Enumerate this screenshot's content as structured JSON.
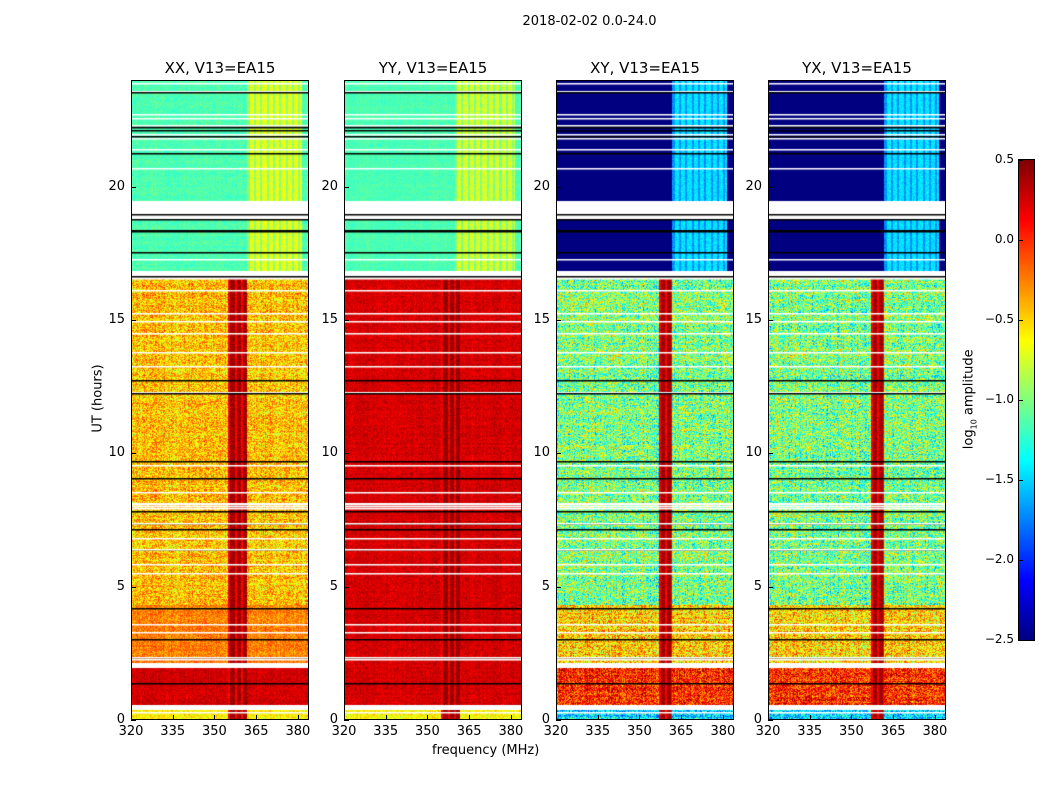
{
  "figure_title": "2018-02-02 0.0-24.0",
  "chart_data": {
    "type": "heatmap",
    "title": "2018-02-02 0.0-24.0",
    "xlabel": "frequency (MHz)",
    "ylabel": "UT (hours)",
    "xlim": [
      320,
      384
    ],
    "ylim": [
      0,
      24
    ],
    "xticks": [
      "320",
      "335",
      "350",
      "365",
      "380"
    ],
    "yticks": [
      "0",
      "5",
      "10",
      "15",
      "20"
    ],
    "colorbar": {
      "label_main": "log",
      "label_sub": "10",
      "label_rest": " amplitude",
      "colormap": "jet",
      "range": [
        -2.5,
        0.5
      ],
      "ticks": [
        "0.5",
        "0.0",
        "−0.5",
        "−1.0",
        "−1.5",
        "−2.0",
        "−2.5"
      ]
    },
    "flagged_hours": [
      [
        18.8,
        19.5
      ],
      [
        16.56,
        16.86
      ],
      [
        1.9,
        2.1
      ],
      [
        0.34,
        0.53
      ]
    ],
    "panels": [
      {
        "title": "XX, V13=EA15",
        "segments": [
          {
            "t": [
              19.5,
              24
            ],
            "level": -1.15,
            "noise": 0.1
          },
          {
            "t": [
              16.86,
              18.8
            ],
            "level": -1.15,
            "noise": 0.1
          },
          {
            "t": [
              4.3,
              16.56
            ],
            "level": -0.45,
            "noise": 0.35
          },
          {
            "t": [
              2.1,
              4.3
            ],
            "level": -0.25,
            "noise": 0.2
          },
          {
            "t": [
              0.53,
              1.9
            ],
            "level": 0.25,
            "noise": 0.12
          },
          {
            "t": [
              0,
              0.34
            ],
            "level": -0.6,
            "noise": 0.2
          }
        ],
        "rfi_bands": [
          {
            "f": [
              355,
              362
            ],
            "t": [
              0,
              16.56
            ],
            "level": 0.4
          },
          {
            "f": [
              362,
              382
            ],
            "t": [
              16.86,
              24
            ],
            "level": -0.7
          }
        ]
      },
      {
        "title": "YY, V13=EA15",
        "segments": [
          {
            "t": [
              19.5,
              24
            ],
            "level": -1.15,
            "noise": 0.08
          },
          {
            "t": [
              16.86,
              18.8
            ],
            "level": -1.15,
            "noise": 0.08
          },
          {
            "t": [
              0.53,
              16.56
            ],
            "level": 0.25,
            "noise": 0.12
          },
          {
            "t": [
              0,
              0.34
            ],
            "level": -0.6,
            "noise": 0.2
          }
        ],
        "rfi_bands": [
          {
            "f": [
              355,
              362
            ],
            "t": [
              0,
              16.56
            ],
            "level": 0.42
          },
          {
            "f": [
              360,
              382
            ],
            "t": [
              16.86,
              24
            ],
            "level": -0.75
          }
        ]
      },
      {
        "title": "XY, V13=EA15",
        "segments": [
          {
            "t": [
              19.5,
              24
            ],
            "level": -2.5,
            "noise": 0
          },
          {
            "t": [
              16.86,
              18.8
            ],
            "level": -2.5,
            "noise": 0
          },
          {
            "t": [
              4.3,
              16.56
            ],
            "level": -1.0,
            "noise": 0.55
          },
          {
            "t": [
              2.1,
              4.3
            ],
            "level": -0.5,
            "noise": 0.45
          },
          {
            "t": [
              0.53,
              1.9
            ],
            "level": 0.0,
            "noise": 0.4
          },
          {
            "t": [
              0,
              0.34
            ],
            "level": -1.5,
            "noise": 0.4
          }
        ],
        "rfi_bands": [
          {
            "f": [
              357,
              362
            ],
            "t": [
              0,
              16.56
            ],
            "level": 0.4
          },
          {
            "f": [
              362,
              382
            ],
            "t": [
              16.86,
              24
            ],
            "level": -1.45
          }
        ]
      },
      {
        "title": "YX, V13=EA15",
        "segments": [
          {
            "t": [
              19.5,
              24
            ],
            "level": -2.5,
            "noise": 0
          },
          {
            "t": [
              16.86,
              18.8
            ],
            "level": -2.5,
            "noise": 0
          },
          {
            "t": [
              4.3,
              16.56
            ],
            "level": -1.0,
            "noise": 0.55
          },
          {
            "t": [
              2.1,
              4.3
            ],
            "level": -0.5,
            "noise": 0.45
          },
          {
            "t": [
              0.53,
              1.9
            ],
            "level": 0.0,
            "noise": 0.4
          },
          {
            "t": [
              0,
              0.34
            ],
            "level": -1.5,
            "noise": 0.4
          }
        ],
        "rfi_bands": [
          {
            "f": [
              357,
              362
            ],
            "t": [
              0,
              16.56
            ],
            "level": 0.4
          },
          {
            "f": [
              362,
              382
            ],
            "t": [
              16.86,
              24
            ],
            "level": -1.45
          }
        ]
      }
    ]
  }
}
